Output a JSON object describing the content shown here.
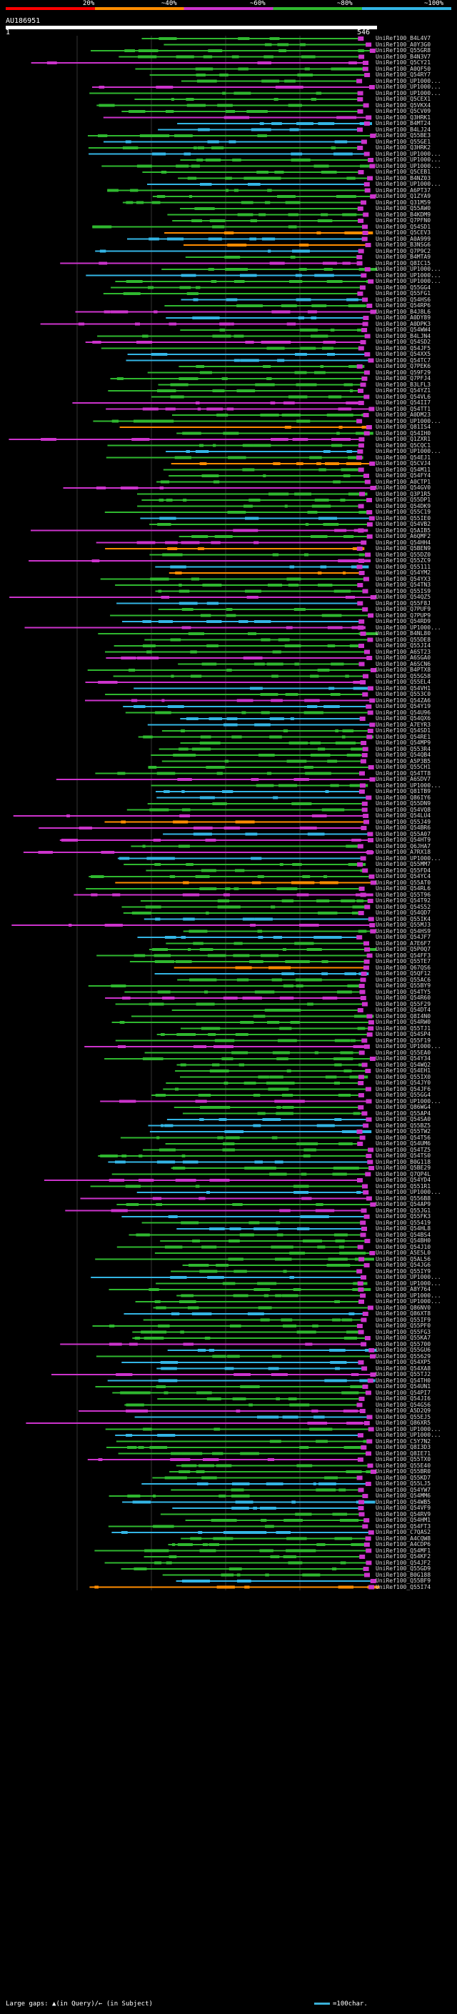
{
  "scale": {
    "labels": [
      "20%",
      "~40%",
      "~60%",
      "~80%",
      "~100%"
    ],
    "colors": [
      "#ff0000",
      "#ff8c00",
      "#cc33cc",
      "#2fb82f",
      "#33b5e5"
    ]
  },
  "query": {
    "name": "AU186951",
    "start": "1",
    "end": "546"
  },
  "hits": [
    "UniRef100_B4L4V7",
    "UniRef100_A0Y3G0",
    "UniRef100_Q55GR8",
    "UniRef100_B4N3V7",
    "UniRef100_Q5CY21",
    "UniRef100_A0QF50",
    "UniRef100_Q54RY7",
    "UniRef100_UP1000...",
    "UniRef100_UP1000...",
    "UniRef100_UP1000...",
    "UniRef100_Q5CEX1",
    "UniRef100_Q5VKX4",
    "UniRef100_Q5CV09",
    "UniRef100_Q3HRK1",
    "UniRef100_B4MT24",
    "UniRef100_B4LJ24",
    "UniRef100_Q55BE3",
    "UniRef100_Q55GE1",
    "UniRef100_Q3HRK2",
    "UniRef100_UP1000...",
    "UniRef100_UP1000...",
    "UniRef100_UP1000...",
    "UniRef100_Q5CEB1",
    "UniRef100_B4NZ03",
    "UniRef100_UP1000...",
    "UniRef100_A6PT37",
    "UniRef100_Q1ZYA9",
    "UniRef100_Q31M59",
    "UniRef100_Q55AW0",
    "UniRef100_B4KDM9",
    "UniRef100_Q7PFN0",
    "UniRef100_Q54SD1",
    "UniRef100_Q5CEV3",
    "UniRef100_A0A999",
    "UniRef100_B3NSG6",
    "UniRef100_Q7P9C2",
    "UniRef100_B4MTA9",
    "UniRef100_Q8IC15",
    "UniRef100_UP1000...",
    "UniRef100_UP1000...",
    "UniRef100_UP1000...",
    "UniRef100_Q55GG4",
    "UniRef100_Q55FG1",
    "UniRef100_Q54HS6",
    "UniRef100_Q54RP6",
    "UniRef100_B4J8L6",
    "UniRef100_A0DY89",
    "UniRef100_A0DPK3",
    "UniRef100_Q54WW4",
    "UniRef100_B4LJN4",
    "UniRef100_Q54SD2",
    "UniRef100_Q54JF5",
    "UniRef100_Q54XX5",
    "UniRef100_Q54TC7",
    "UniRef100_Q7PEK6",
    "UniRef100_Q59F29",
    "UniRef100_Q7PFJ4",
    "UniRef100_B3LFL3",
    "UniRef100_Q54YZ1",
    "UniRef100_Q54VL6",
    "UniRef100_Q54II7",
    "UniRef100_Q54TT1",
    "UniRef100_A0DM23",
    "UniRef100_UP1000...",
    "UniRef100_Q81IS4",
    "UniRef100_Q54IH0",
    "UniRef100_Q1ZXR1",
    "UniRef100_Q5CQC1",
    "UniRef100_UP1000...",
    "UniRef100_Q54EJ1",
    "UniRef100_Q5CVJ4",
    "UniRef100_Q54M11",
    "UniRef100_Q54FY4",
    "UniRef100_A0CTP1",
    "UniRef100_Q54GV0",
    "UniRef100_Q3P1R5",
    "UniRef100_Q55DP1",
    "UniRef100_Q54DK9",
    "UniRef100_Q55C19",
    "UniRef100_Q55IE0",
    "UniRef100_Q54VB2",
    "UniRef100_Q5AIB5",
    "UniRef100_A6QMF2",
    "UniRef100_Q54HH4",
    "UniRef100_Q5BEN9",
    "UniRef100_Q55DZ0",
    "UniRef100_Q55ZC9",
    "UniRef100_Q55111",
    "UniRef100_Q54YM2",
    "UniRef100_Q54YX3",
    "UniRef100_Q54TN3",
    "UniRef100_Q55IS9",
    "UniRef100_Q54QZ5",
    "UniRef100_Q55F8J",
    "UniRef100_Q7PUF9",
    "UniRef100_Q7PUP9",
    "UniRef100_Q54RD9",
    "UniRef100_UP1000...",
    "UniRef100_B4NL80",
    "UniRef100_Q55DE8",
    "UniRef100_Q55JI4",
    "UniRef100_A6ST23",
    "UniRef100_A6SGA0",
    "UniRef100_A6SCN6",
    "UniRef100_B4PTX8",
    "UniRef100_Q55G58",
    "UniRef100_Q55EL4",
    "UniRef100_Q54VH1",
    "UniRef100_Q553C0",
    "UniRef100_Q54ZA6",
    "UniRef100_Q54Y19",
    "UniRef100_Q54U96",
    "UniRef100_Q54QX6",
    "UniRef100_A7EYR3",
    "UniRef100_Q54SD1",
    "UniRef100_Q54RE1",
    "UniRef100_Q54MP9",
    "UniRef100_Q553R4",
    "UniRef100_Q54QB4",
    "UniRef100_A5P3B5",
    "UniRef100_Q55CH1",
    "UniRef100_Q54TT8",
    "UniRef100_A6SDV7",
    "UniRef100_UP1000...",
    "UniRef100_Q81TB9",
    "UniRef100_Q86IY6",
    "UniRef100_Q55DN9",
    "UniRef100_Q54VQ8",
    "UniRef100_Q54LU4",
    "UniRef100_Q55J49",
    "UniRef100_Q54BR6",
    "UniRef100_Q55A07",
    "UniRef100_Q54HT9",
    "UniRef100_Q6JHA7",
    "UniRef100_A7RX18",
    "UniRef100_UP1000...",
    "UniRef100_Q55MM7",
    "UniRef100_Q55FD4",
    "UniRef100_Q54YC4",
    "UniRef100_Q55AT0",
    "UniRef100_Q54RL6",
    "UniRef100_Q55T96",
    "UniRef100_Q54T92",
    "UniRef100_Q54S52",
    "UniRef100_Q54QD7",
    "UniRef100_Q55IK4",
    "UniRef100_Q55MJ3",
    "UniRef100_Q54HS9",
    "UniRef100_Q54JF7",
    "UniRef100_A7E6F7",
    "UniRef100_Q5P0Q7",
    "UniRef100_Q54FF3",
    "UniRef100_Q55TE7",
    "UniRef100_Q67QS6",
    "UniRef100_Q5QF12",
    "UniRef100_Q55AC6",
    "UniRef100_Q55BY9",
    "UniRef100_Q54TY5",
    "UniRef100_Q54R60",
    "UniRef100_Q55F29",
    "UniRef100_Q54DT4",
    "UniRef100_Q8I4N0",
    "UniRef100_Q54RW0",
    "UniRef100_Q55TJ1",
    "UniRef100_Q54SP4",
    "UniRef100_Q55F19",
    "UniRef100_UP1000...",
    "UniRef100_Q55EA0",
    "UniRef100_Q54Y34",
    "UniRef100_Q54WQ2",
    "UniRef100_Q54EH1",
    "UniRef100_Q55IX0",
    "UniRef100_Q54JY0",
    "UniRef100_Q54JF6",
    "UniRef100_Q55GG4",
    "UniRef100_UP1000...",
    "UniRef100_Q86WG4",
    "UniRef100_Q55AP4",
    "UniRef100_Q54SA0",
    "UniRef100_Q55BZ5",
    "UniRef100_Q55TW2",
    "UniRef100_Q54T56",
    "UniRef100_Q54UM6",
    "UniRef100_Q54TZ5",
    "UniRef100_Q54TS0",
    "UniRef100_B0G118",
    "UniRef100_Q5BE29",
    "UniRef100_Q7QP4L",
    "UniRef100_Q54YD4",
    "UniRef100_Q551R1",
    "UniRef100_UP1000...",
    "UniRef100_Q556B8",
    "UniRef100_Q54AP9",
    "UniRef100_Q55JG1",
    "UniRef100_Q55FK3",
    "UniRef100_Q55419",
    "UniRef100_Q54HL8",
    "UniRef100_Q54BS4",
    "UniRef100_Q54BH0",
    "UniRef100_Q54J10",
    "UniRef100_A5E5L0",
    "UniRef100_Q5AL56",
    "UniRef100_Q54JG6",
    "UniRef100_Q55IY9",
    "UniRef100_UP1000...",
    "UniRef100_UP1000...",
    "UniRef100_A8Y764",
    "UniRef100_UP1000...",
    "UniRef100_UP1000...",
    "UniRef100_Q86NV0",
    "UniRef100_Q86XT8",
    "UniRef100_Q55IF9",
    "UniRef100_Q55PF0",
    "UniRef100_Q55FG3",
    "UniRef100_Q55KA7",
    "UniRef100_Q55700",
    "UniRef100_Q55GU6",
    "UniRef100_Q55629",
    "UniRef100_Q54XP5",
    "UniRef100_Q54XA8",
    "UniRef100_Q55TJ2",
    "UniRef100_Q54TH0",
    "UniRef100_Q54UN1",
    "UniRef100_Q54PI7",
    "UniRef100_Q54JI6",
    "UniRef100_Q54G56",
    "UniRef100_A5D2Q9",
    "UniRef100_Q55EJ5",
    "UniRef100_Q86XR5",
    "UniRef100_UP1000...",
    "UniRef100_UP1000...",
    "UniRef100_C5Y7N2",
    "UniRef100_Q8I3D3",
    "UniRef100_Q8IE71",
    "UniRef100_Q55TX0",
    "UniRef100_Q55E40",
    "UniRef100_Q55BR0",
    "UniRef100_Q55KD7",
    "UniRef100_Q55LJ5",
    "UniRef100_Q54YW7",
    "UniRef100_Q54MM6",
    "UniRef100_Q54WB5",
    "UniRef100_Q54VF9",
    "UniRef100_Q54RV9",
    "UniRef100_Q54HM1",
    "UniRef100_Q54FT3",
    "UniRef100_C7QAS2",
    "UniRef100_A4CQW8",
    "UniRef100_A4CDP6",
    "UniRef100_Q54MF1",
    "UniRef100_Q54KF2",
    "UniRef100_Q54JF2",
    "UniRef100_Q55GD9",
    "UniRef100_B0G188",
    "UniRef100_Q55BF9",
    "UniRef100_Q55I74"
  ],
  "footer": {
    "gaps_label": "Large gaps: ▲(in Query)/← (in Subject)",
    "scale_label": "=100char."
  }
}
